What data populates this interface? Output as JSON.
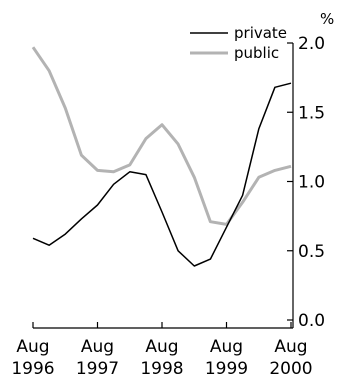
{
  "chart_data": {
    "type": "line",
    "unit_label": "%",
    "x_tick_labels": [
      {
        "month": "Aug",
        "year": "1996"
      },
      {
        "month": "Aug",
        "year": "1997"
      },
      {
        "month": "Aug",
        "year": "1998"
      },
      {
        "month": "Aug",
        "year": "1999"
      },
      {
        "month": "Aug",
        "year": "2000"
      }
    ],
    "y_tick_labels": [
      "2.0",
      "1.5",
      "1.0",
      "0.5",
      "0.0"
    ],
    "ylim": [
      0,
      2.0
    ],
    "xlim": [
      "1996-08",
      "2000-08"
    ],
    "grid": false,
    "legend_position": "top-right",
    "series": [
      {
        "name": "private",
        "color": "#000000",
        "x": [
          "1996-08",
          "1996-11",
          "1997-02",
          "1997-05",
          "1997-08",
          "1997-11",
          "1998-02",
          "1998-05",
          "1998-08",
          "1998-11",
          "1999-02",
          "1999-05",
          "1999-08",
          "1999-11",
          "2000-02",
          "2000-05",
          "2000-08"
        ],
        "y": [
          0.59,
          0.54,
          0.62,
          0.73,
          0.83,
          0.98,
          1.07,
          1.05,
          0.78,
          0.5,
          0.39,
          0.44,
          0.67,
          0.9,
          1.38,
          1.68,
          1.71
        ]
      },
      {
        "name": "public",
        "color": "#b3b3b3",
        "x": [
          "1996-08",
          "1996-11",
          "1997-02",
          "1997-05",
          "1997-08",
          "1997-11",
          "1998-02",
          "1998-05",
          "1998-08",
          "1998-11",
          "1999-02",
          "1999-05",
          "1999-08",
          "1999-11",
          "2000-02",
          "2000-05",
          "2000-08"
        ],
        "y": [
          1.97,
          1.8,
          1.53,
          1.19,
          1.08,
          1.07,
          1.12,
          1.31,
          1.41,
          1.27,
          1.03,
          0.71,
          0.69,
          0.85,
          1.03,
          1.08,
          1.11
        ]
      }
    ]
  }
}
